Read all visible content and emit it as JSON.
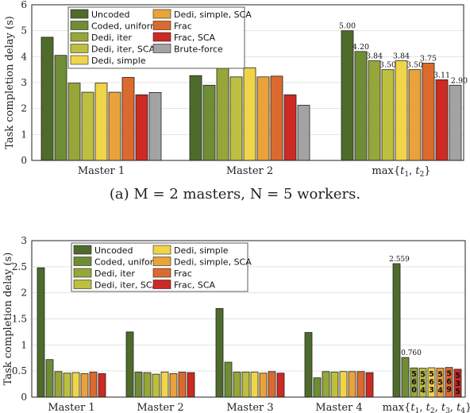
{
  "caption": "(a)  M = 2 masters, N = 5 workers.",
  "chart_data": [
    {
      "type": "bar",
      "ylabel": "Task completion delay (s)",
      "ylim": [
        0,
        6
      ],
      "yticks": [
        0,
        1,
        2,
        3,
        4,
        5,
        6
      ],
      "grid": true,
      "legend_position": "top-left",
      "categories": [
        "Master 1",
        "Master 2",
        "max{t1, t2}"
      ],
      "series": [
        {
          "name": "Uncoded",
          "values": [
            4.75,
            3.27,
            5.0
          ]
        },
        {
          "name": "Coded, uniform",
          "values": [
            4.05,
            2.9,
            4.2
          ]
        },
        {
          "name": "Dedi, iter",
          "values": [
            2.98,
            3.57,
            3.84
          ]
        },
        {
          "name": "Dedi, iter, SCA",
          "values": [
            2.63,
            3.22,
            3.5
          ]
        },
        {
          "name": "Dedi, simple",
          "values": [
            2.98,
            3.57,
            3.84
          ]
        },
        {
          "name": "Dedi, simple, SCA",
          "values": [
            2.63,
            3.22,
            3.5
          ]
        },
        {
          "name": "Frac",
          "values": [
            3.2,
            3.25,
            3.75
          ]
        },
        {
          "name": "Frac, SCA",
          "values": [
            2.53,
            2.53,
            3.11
          ]
        },
        {
          "name": "Brute-force",
          "values": [
            2.62,
            2.13,
            2.9
          ]
        }
      ],
      "data_labels_group": 2,
      "data_labels": [
        "5.00",
        "4.20",
        "3.84",
        "3.50",
        "3.84",
        "3.50",
        "3.75",
        "3.11",
        "2.90"
      ]
    },
    {
      "type": "bar",
      "ylabel": "Task completion delay (s)",
      "ylim": [
        0,
        3
      ],
      "yticks": [
        0,
        0.5,
        1,
        1.5,
        2,
        2.5,
        3
      ],
      "grid": true,
      "legend_position": "top-left",
      "categories": [
        "Master 1",
        "Master 2",
        "Master 3",
        "Master 4",
        "max{t1, t2, t3, t4}"
      ],
      "series": [
        {
          "name": "Uncoded",
          "values": [
            2.48,
            1.25,
            1.7,
            1.24,
            2.559
          ]
        },
        {
          "name": "Coded, uniform",
          "values": [
            0.72,
            0.48,
            0.67,
            0.37,
            0.76
          ]
        },
        {
          "name": "Dedi, iter",
          "values": [
            0.49,
            0.47,
            0.48,
            0.49,
            0.56
          ]
        },
        {
          "name": "Dedi, iter, SCA",
          "values": [
            0.46,
            0.44,
            0.48,
            0.48,
            0.554
          ]
        },
        {
          "name": "Dedi, simple",
          "values": [
            0.47,
            0.48,
            0.48,
            0.49,
            0.563
          ]
        },
        {
          "name": "Dedi, simple, SCA",
          "values": [
            0.45,
            0.45,
            0.46,
            0.49,
            0.554
          ]
        },
        {
          "name": "Frac",
          "values": [
            0.48,
            0.48,
            0.49,
            0.49,
            0.569
          ]
        },
        {
          "name": "Frac, SCA",
          "values": [
            0.45,
            0.47,
            0.46,
            0.47,
            0.535
          ]
        }
      ],
      "data_labels_group": 4,
      "data_labels": [
        "2.559",
        "0.760",
        "560",
        "554",
        "563",
        "554",
        "569",
        "535"
      ]
    }
  ],
  "legend_labels": {
    "c1": [
      [
        "Uncoded",
        "Dedi, simple, SCA"
      ],
      [
        "Coded, uniform",
        "Frac"
      ],
      [
        "Dedi, iter",
        "Frac, SCA"
      ],
      [
        "Dedi, iter, SCA",
        "Brute-force"
      ],
      [
        "Dedi, simple",
        ""
      ]
    ],
    "c2": [
      [
        "Uncoded",
        "Dedi, simple"
      ],
      [
        "Coded, uniform",
        "Dedi, simple, SCA"
      ],
      [
        "Dedi, iter",
        "Frac"
      ],
      [
        "Dedi, iter, SCA",
        "Frac, SCA"
      ]
    ]
  },
  "colors": {
    "Uncoded": "#4e6b2b",
    "Coded, uniform": "#6f8d35",
    "Dedi, iter": "#97a63a",
    "Dedi, iter, SCA": "#bdbf3f",
    "Dedi, simple": "#f0d54a",
    "Dedi, simple, SCA": "#eaa23a",
    "Frac": "#dc6a2e",
    "Frac, SCA": "#cc2a22",
    "Brute-force": "#a3a3a3"
  }
}
